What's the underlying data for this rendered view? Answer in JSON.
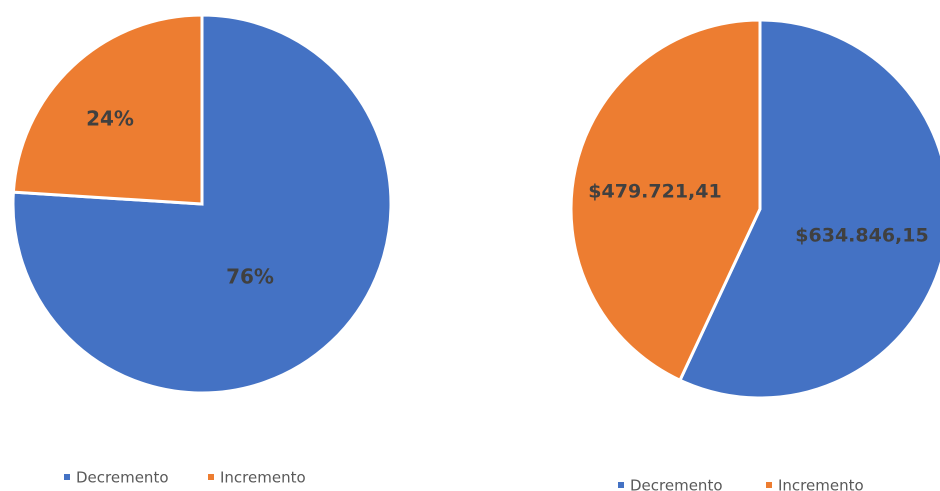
{
  "chart_data": [
    {
      "type": "pie",
      "categories": [
        "Decremento",
        "Incremento"
      ],
      "values": [
        76,
        24
      ],
      "data_labels": [
        "76%",
        "24%"
      ],
      "colors": [
        "#4472C4",
        "#ED7D31"
      ],
      "legend": {
        "placement": "bottom",
        "entries": [
          "Decremento",
          "Incremento"
        ]
      }
    },
    {
      "type": "pie",
      "categories": [
        "Decremento",
        "Incremento"
      ],
      "values": [
        634846.15,
        479721.41
      ],
      "data_labels": [
        "$634.846,15",
        "$479.721,41"
      ],
      "colors": [
        "#4472C4",
        "#ED7D31"
      ],
      "legend": {
        "placement": "bottom",
        "entries": [
          "Decremento",
          "Incremento"
        ]
      }
    }
  ]
}
